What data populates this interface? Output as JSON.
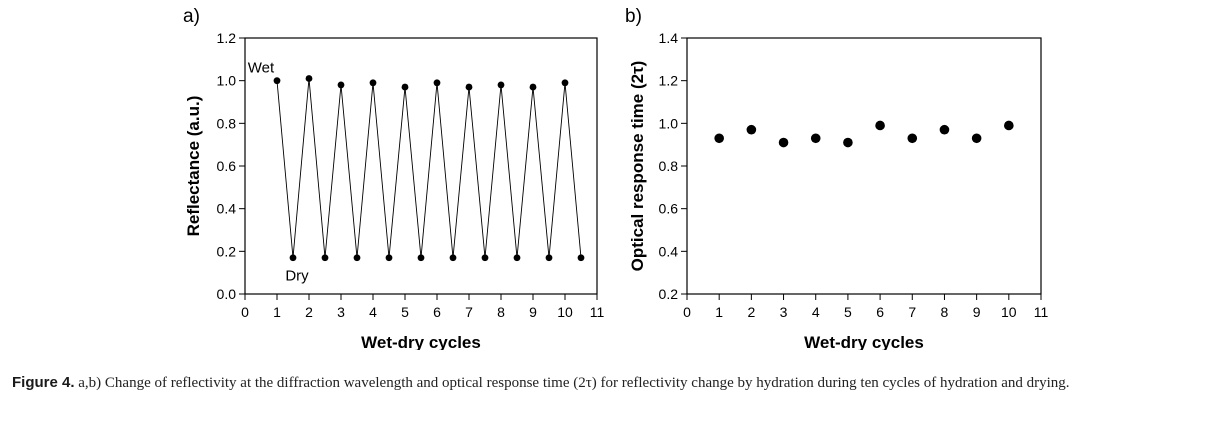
{
  "chart_data": [
    {
      "type": "line",
      "panel_label": "a)",
      "xlabel": "Wet-dry cycles",
      "ylabel": "Reflectance (a.u.)",
      "xlim": [
        0,
        11
      ],
      "ylim": [
        0,
        1.2
      ],
      "xticks": [
        "0",
        "1",
        "2",
        "3",
        "4",
        "5",
        "6",
        "7",
        "8",
        "9",
        "10",
        "11"
      ],
      "yticks": [
        "0.0",
        "0.2",
        "0.4",
        "0.6",
        "0.8",
        "1.0",
        "1.2"
      ],
      "annotations": [
        "Wet",
        "Dry"
      ],
      "series": [
        {
          "x": [
            1,
            1.5,
            2,
            2.5,
            3,
            3.5,
            4,
            4.5,
            5,
            5.5,
            6,
            6.5,
            7,
            7.5,
            8,
            8.5,
            9,
            9.5,
            10,
            10.5
          ],
          "y": [
            1.0,
            0.17,
            1.01,
            0.17,
            0.98,
            0.17,
            0.99,
            0.17,
            0.97,
            0.17,
            0.99,
            0.17,
            0.97,
            0.17,
            0.98,
            0.17,
            0.97,
            0.17,
            0.99,
            0.17
          ]
        }
      ]
    },
    {
      "type": "scatter",
      "panel_label": "b)",
      "xlabel": "Wet-dry cycles",
      "ylabel": "Optical response time (2τ)",
      "xlim": [
        0,
        11
      ],
      "ylim": [
        0.2,
        1.4
      ],
      "xticks": [
        "0",
        "1",
        "2",
        "3",
        "4",
        "5",
        "6",
        "7",
        "8",
        "9",
        "10",
        "11"
      ],
      "yticks": [
        "0.2",
        "0.4",
        "0.6",
        "0.8",
        "1.0",
        "1.2",
        "1.4"
      ],
      "series": [
        {
          "x": [
            1,
            2,
            3,
            4,
            5,
            6,
            7,
            8,
            9,
            10
          ],
          "y": [
            0.93,
            0.97,
            0.91,
            0.93,
            0.91,
            0.99,
            0.93,
            0.97,
            0.93,
            0.99
          ]
        }
      ]
    }
  ],
  "caption": {
    "label": "Figure 4.",
    "text": "a,b) Change of reflectivity at the diffraction wavelength and optical response time (2τ) for reflectivity change by hydration during ten cycles of hydration and drying."
  }
}
